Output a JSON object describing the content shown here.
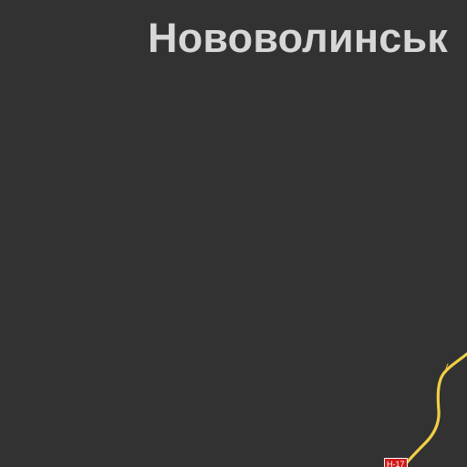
{
  "map": {
    "city_label": "Нововолинськ",
    "road_shield": "Н-17",
    "colors": {
      "background": "#323232",
      "road": "#f1cf45",
      "label": "#d7d7d7",
      "shield": "#d11a1a"
    }
  }
}
